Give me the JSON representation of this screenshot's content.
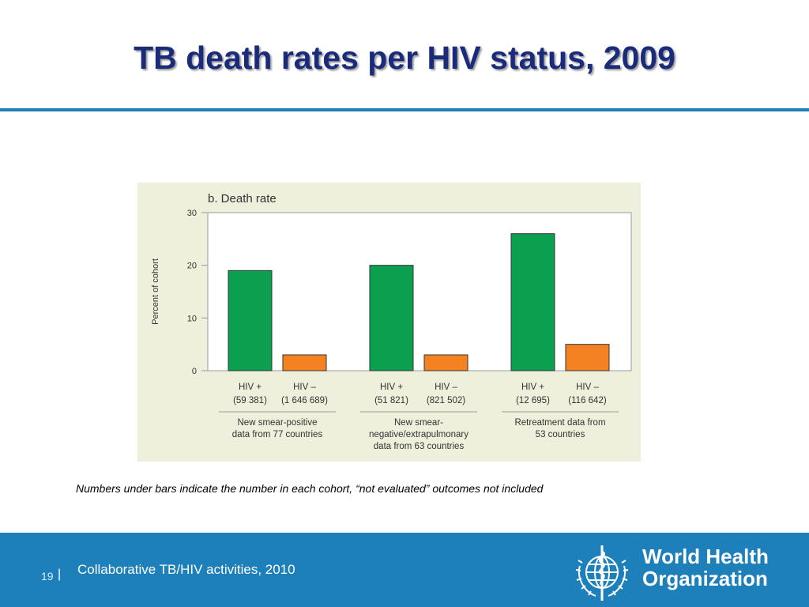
{
  "slide": {
    "title": "TB death rates per HIV status, 2009",
    "footnote": "Numbers under bars indicate the number in each cohort, “not evaluated” outcomes not included"
  },
  "footer": {
    "page_number": "19",
    "separator": "|",
    "text": "Collaborative TB/HIV activities, 2010",
    "logo_line1": "World Health",
    "logo_line2": "Organization"
  },
  "colors": {
    "hiv_positive": "#0aa050",
    "hiv_negative": "#f58220",
    "title": "#1a2b7c",
    "footer_bg": "#1d80ba"
  },
  "chart_data": {
    "type": "bar",
    "title": "b. Death rate",
    "ylabel": "Percent of cohort",
    "ylim": [
      0,
      30
    ],
    "yticks": [
      0,
      10,
      20,
      30
    ],
    "grid": false,
    "groups": [
      {
        "bars": [
          {
            "label": "HIV +",
            "cohort": "(59 381)",
            "value": 19,
            "color": "#0aa050"
          },
          {
            "label": "HIV –",
            "cohort": "(1 646 689)",
            "value": 3,
            "color": "#f58220"
          }
        ],
        "caption": [
          "New smear-positive",
          "data from 77 countries"
        ]
      },
      {
        "bars": [
          {
            "label": "HIV +",
            "cohort": "(51 821)",
            "value": 20,
            "color": "#0aa050"
          },
          {
            "label": "HIV –",
            "cohort": "(821 502)",
            "value": 3,
            "color": "#f58220"
          }
        ],
        "caption": [
          "New smear-",
          "negative/extrapulmonary",
          "data from 63 countries"
        ]
      },
      {
        "bars": [
          {
            "label": "HIV +",
            "cohort": "(12 695)",
            "value": 26,
            "color": "#0aa050"
          },
          {
            "label": "HIV –",
            "cohort": "(116 642)",
            "value": 5,
            "color": "#f58220"
          }
        ],
        "caption": [
          "Retreatment data from",
          "53 countries"
        ]
      }
    ]
  }
}
